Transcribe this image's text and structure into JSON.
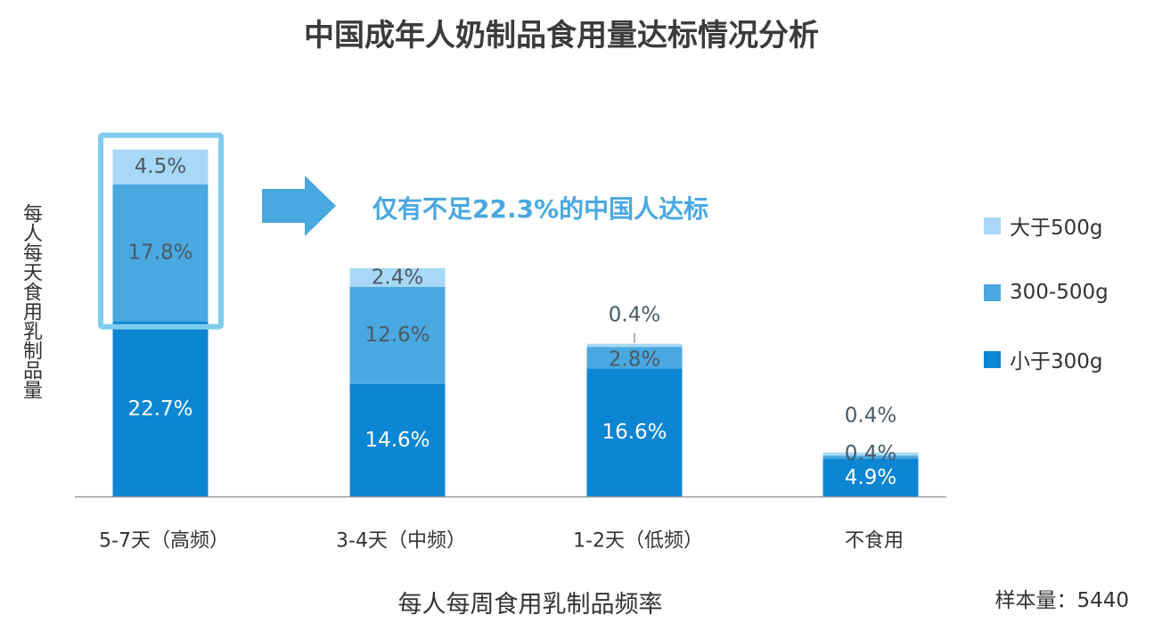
{
  "title": "中国成年人奶制品食用量达标情况分析",
  "annotation": "仅有不足22.3%的中国人达标",
  "sample_text": "样本量：5440",
  "colors": {
    "small": "#0c86d3",
    "mid": "#4aa8e0",
    "large": "#a7d8f5",
    "highlight_border": "#7fcdee",
    "arrow": "#4aa8e0",
    "axis": "#999999"
  },
  "chart_data": {
    "type": "bar",
    "stacked": true,
    "title": "中国成年人奶制品食用量达标情况分析",
    "xlabel": "每人每周食用乳制品频率",
    "ylabel": "每人每天食用乳制品量",
    "categories": [
      "5-7天（高频）",
      "3-4天（中频）",
      "1-2天（低频）",
      "不食用"
    ],
    "series": [
      {
        "name": "小于300g",
        "values": [
          22.7,
          14.6,
          16.6,
          4.9
        ]
      },
      {
        "name": "300-500g",
        "values": [
          17.8,
          12.6,
          2.8,
          0.4
        ]
      },
      {
        "name": "大于500g",
        "values": [
          4.5,
          2.4,
          0.4,
          0.4
        ]
      }
    ],
    "value_labels": [
      [
        "22.7%",
        "14.6%",
        "16.6%",
        "4.9%"
      ],
      [
        "17.8%",
        "12.6%",
        "2.8%",
        "0.4%"
      ],
      [
        "4.5%",
        "2.4%",
        "0.4%",
        "0.4%"
      ]
    ],
    "legend_position": "right",
    "grid": false
  }
}
